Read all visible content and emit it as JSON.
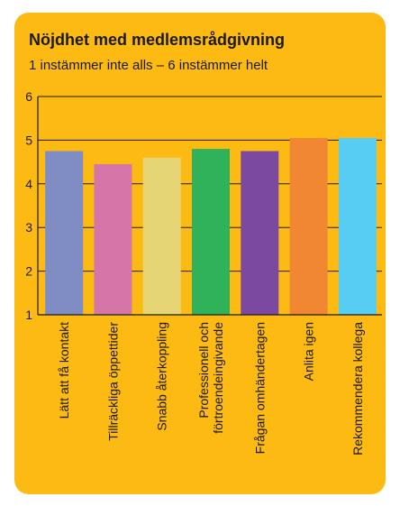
{
  "chart_data": {
    "type": "bar",
    "title": "Nöjdhet med medlemsrådgivning",
    "subtitle": "1 instämmer inte alls – 6 instämmer helt",
    "xlabel": "",
    "ylabel": "",
    "ylim": [
      1,
      6
    ],
    "yticks": [
      "1",
      "2",
      "3",
      "4",
      "5",
      "6"
    ],
    "grid": true,
    "categories": [
      "Lätt att få kontakt",
      "Tillräckliga öppettider",
      "Snabb återkoppling",
      "Professionell och förtroendeingivande",
      "Frågan omhändertagen",
      "Anlita igen",
      "Rekommendera kollega"
    ],
    "category_lines": [
      [
        "Lätt att få kontakt"
      ],
      [
        "Tillräckliga öppettider"
      ],
      [
        "Snabb återkoppling"
      ],
      [
        "Professionell och",
        "förtroendeingivande"
      ],
      [
        "Frågan omhändertagen"
      ],
      [
        "Anlita igen"
      ],
      [
        "Rekommendera kollega"
      ]
    ],
    "values": [
      4.75,
      4.45,
      4.6,
      4.8,
      4.75,
      5.05,
      5.05
    ],
    "bar_colors": [
      "#7F8DC4",
      "#D676A8",
      "#E6D574",
      "#2FB25A",
      "#7B49A0",
      "#F28733",
      "#58CDF4"
    ],
    "background_color": "#FDBA12"
  }
}
